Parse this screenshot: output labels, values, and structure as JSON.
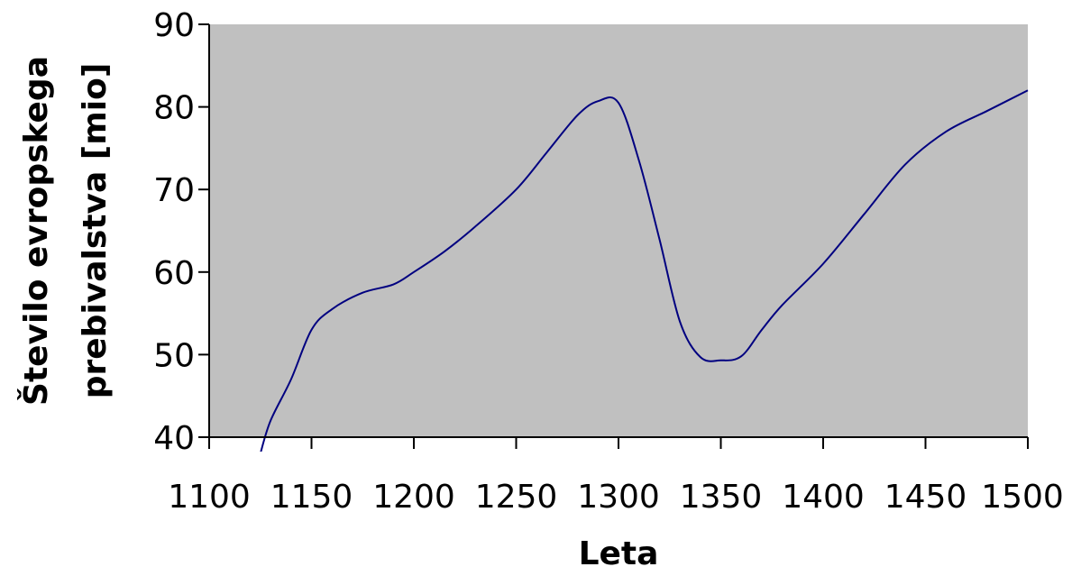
{
  "chart_data": {
    "type": "line",
    "title": "",
    "xlabel": "Leta",
    "ylabel_lines": [
      "Število evropskega",
      "prebivalstva [mio]"
    ],
    "xlim": [
      1100,
      1500
    ],
    "ylim": [
      40,
      90
    ],
    "x_ticks": [
      "1100",
      "1150",
      "1200",
      "1250",
      "1300",
      "1350",
      "1400",
      "1450",
      "1500"
    ],
    "y_ticks": [
      "40",
      "50",
      "60",
      "70",
      "80",
      "90"
    ],
    "grid": false,
    "legend": "none",
    "plot_background": "#c0c0c0",
    "line_color": "#000080",
    "series": [
      {
        "x": [
          1125,
          1130,
          1140,
          1150,
          1160,
          1175,
          1190,
          1200,
          1215,
          1230,
          1250,
          1265,
          1280,
          1290,
          1300,
          1310,
          1320,
          1330,
          1340,
          1350,
          1360,
          1370,
          1380,
          1400,
          1420,
          1440,
          1460,
          1480,
          1500
        ],
        "y": [
          38,
          42,
          47,
          53,
          55.5,
          57.5,
          58.5,
          60,
          62.5,
          65.5,
          70,
          74.5,
          79,
          80.7,
          80.5,
          73.5,
          64,
          54,
          49.7,
          49.3,
          49.8,
          53,
          56,
          61,
          67,
          73,
          77,
          79.5,
          82
        ]
      }
    ]
  }
}
